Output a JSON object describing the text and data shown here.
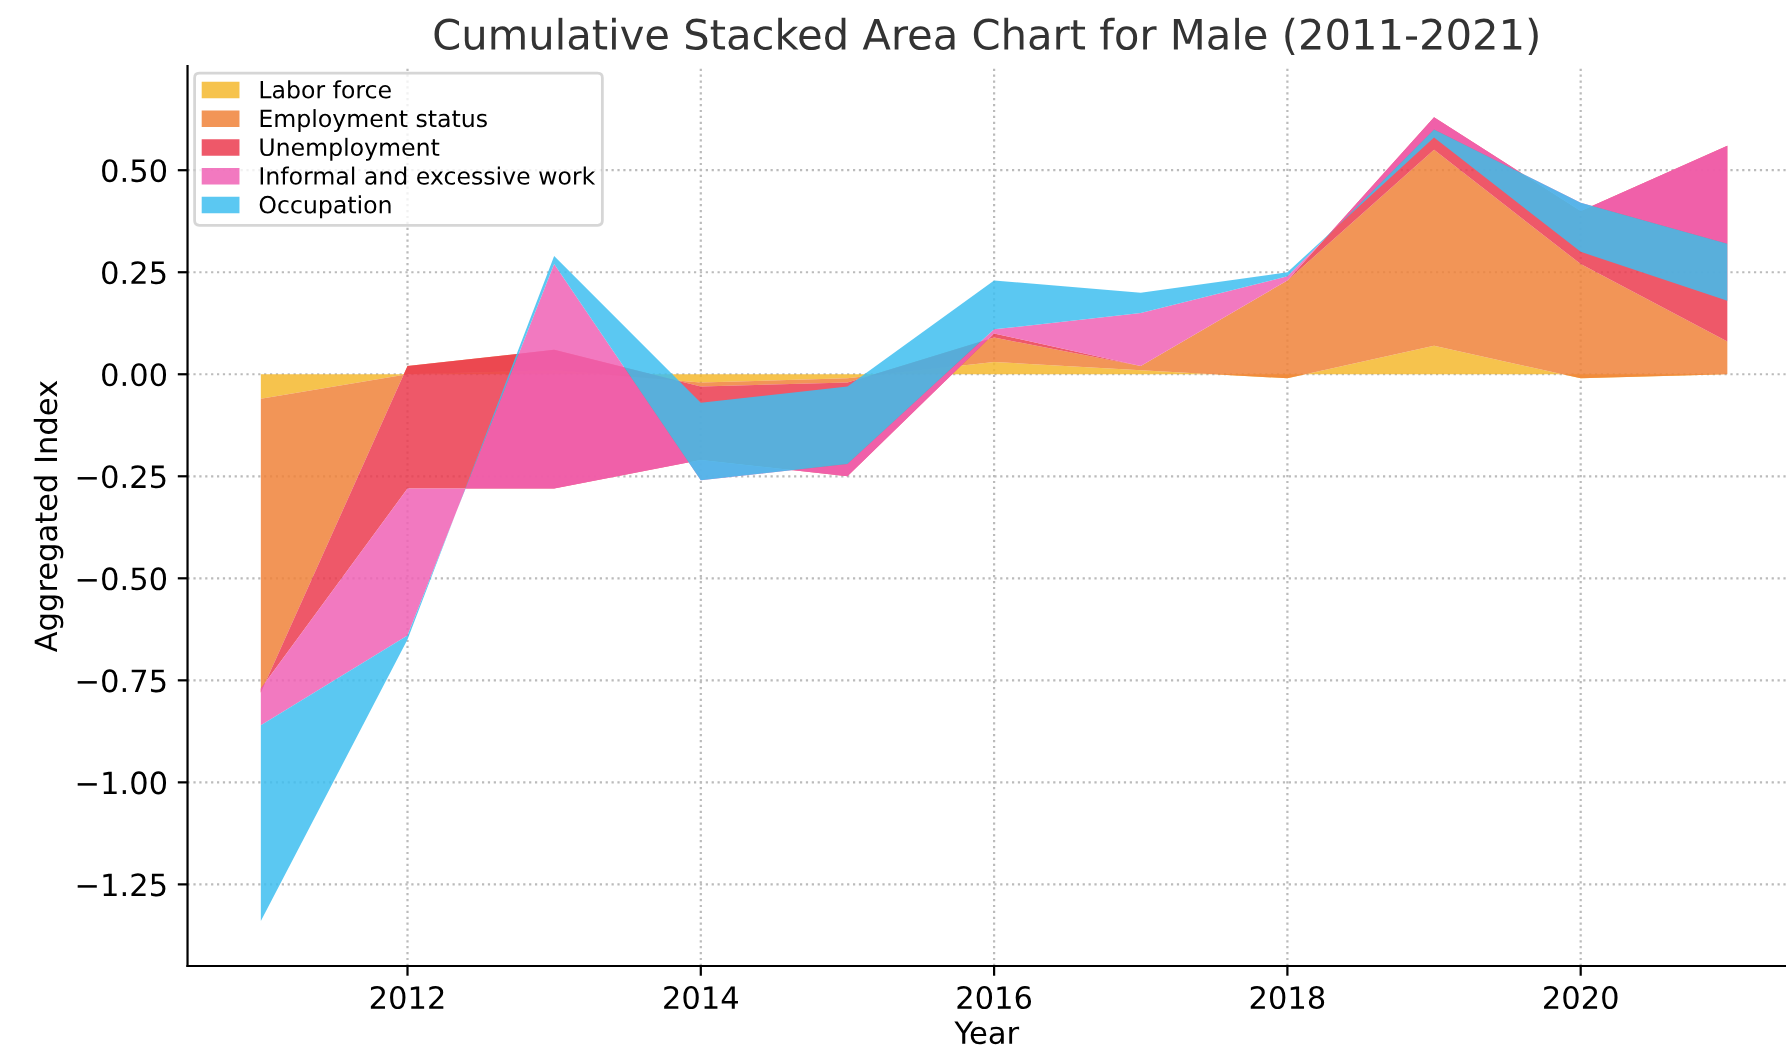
{
  "chart_data": {
    "type": "area",
    "stacked": true,
    "title": "Cumulative Stacked Area Chart for Male (2011-2021)",
    "xlabel": "Year",
    "ylabel": "Aggregated Index",
    "x": [
      2011,
      2012,
      2013,
      2014,
      2015,
      2016,
      2017,
      2018,
      2019,
      2020,
      2021
    ],
    "series": [
      {
        "name": "Labor force",
        "color": "#f5b82e",
        "values": [
          -0.06,
          0.0,
          0.01,
          -0.02,
          -0.01,
          0.03,
          0.01,
          -0.01,
          0.07,
          -0.01,
          0.0
        ]
      },
      {
        "name": "Employment status",
        "color": "#f0833a",
        "values": [
          -0.72,
          0.02,
          0.05,
          -0.01,
          -0.01,
          0.06,
          0.01,
          0.24,
          0.48,
          0.28,
          0.08
        ]
      },
      {
        "name": "Unemployment",
        "color": "#eb3b4f",
        "values": [
          0.01,
          -0.3,
          -0.34,
          -0.18,
          -0.23,
          0.01,
          0.0,
          0.0,
          0.08,
          0.13,
          0.48
        ]
      },
      {
        "name": "Informal and excessive work",
        "color": "#f062b5",
        "values": [
          -0.09,
          -0.36,
          0.55,
          -0.05,
          0.03,
          0.01,
          0.13,
          0.01,
          -0.03,
          0.02,
          -0.24
        ]
      },
      {
        "name": "Occupation",
        "color": "#3ebef0",
        "values": [
          -0.48,
          -0.01,
          0.02,
          0.19,
          0.19,
          0.12,
          0.05,
          0.01,
          -0.02,
          -0.12,
          -0.14
        ]
      }
    ],
    "xlim": [
      2010.5,
      2021.4
    ],
    "xticks": [
      2012,
      2014,
      2016,
      2018,
      2020
    ],
    "ylim": [
      -1.45,
      0.755
    ],
    "yticks": [
      {
        "value": -1.25,
        "label": "−1.25"
      },
      {
        "value": -1.0,
        "label": "−1.00"
      },
      {
        "value": -0.75,
        "label": "−0.75"
      },
      {
        "value": -0.5,
        "label": "−0.50"
      },
      {
        "value": -0.25,
        "label": "−0.25"
      },
      {
        "value": 0.0,
        "label": "0.00"
      },
      {
        "value": 0.25,
        "label": "0.25"
      },
      {
        "value": 0.5,
        "label": "0.50"
      }
    ],
    "grid": true,
    "legend": "top left"
  }
}
